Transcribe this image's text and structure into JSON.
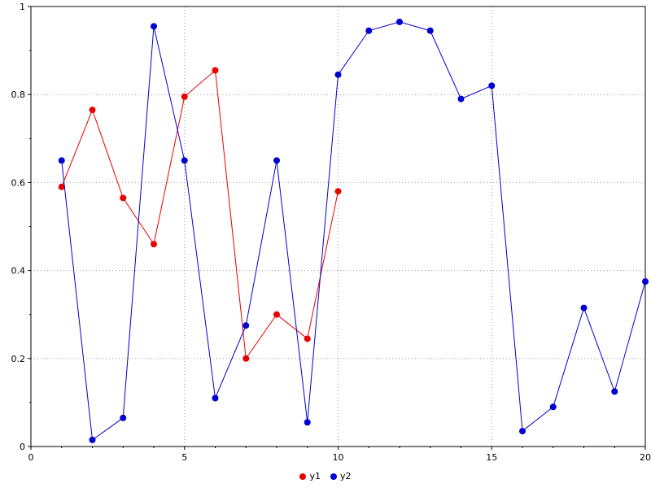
{
  "chart_data": {
    "type": "line",
    "title": "",
    "xlabel": "",
    "ylabel": "",
    "xlim": [
      0,
      20
    ],
    "ylim": [
      0,
      1
    ],
    "xticks": [
      0,
      5,
      10,
      15,
      20
    ],
    "yticks": [
      0,
      0.2,
      0.4,
      0.6,
      0.8,
      1
    ],
    "grid": true,
    "legend_position": "bottom-center",
    "series": [
      {
        "name": "y1",
        "color": "#e80000",
        "marker": "circle",
        "x": [
          1,
          2,
          3,
          4,
          5,
          6,
          7,
          8,
          9,
          10
        ],
        "y": [
          0.59,
          0.765,
          0.565,
          0.46,
          0.795,
          0.855,
          0.2,
          0.3,
          0.245,
          0.58
        ]
      },
      {
        "name": "y2",
        "color": "#0000d0",
        "marker": "circle",
        "x": [
          1,
          2,
          3,
          4,
          5,
          6,
          7,
          8,
          9,
          10,
          11,
          12,
          13,
          14,
          15,
          16,
          17,
          18,
          19,
          20
        ],
        "y": [
          0.65,
          0.015,
          0.065,
          0.955,
          0.65,
          0.11,
          0.275,
          0.65,
          0.055,
          0.845,
          0.945,
          0.965,
          0.945,
          0.79,
          0.82,
          0.035,
          0.09,
          0.315,
          0.125,
          0.375
        ]
      }
    ]
  }
}
